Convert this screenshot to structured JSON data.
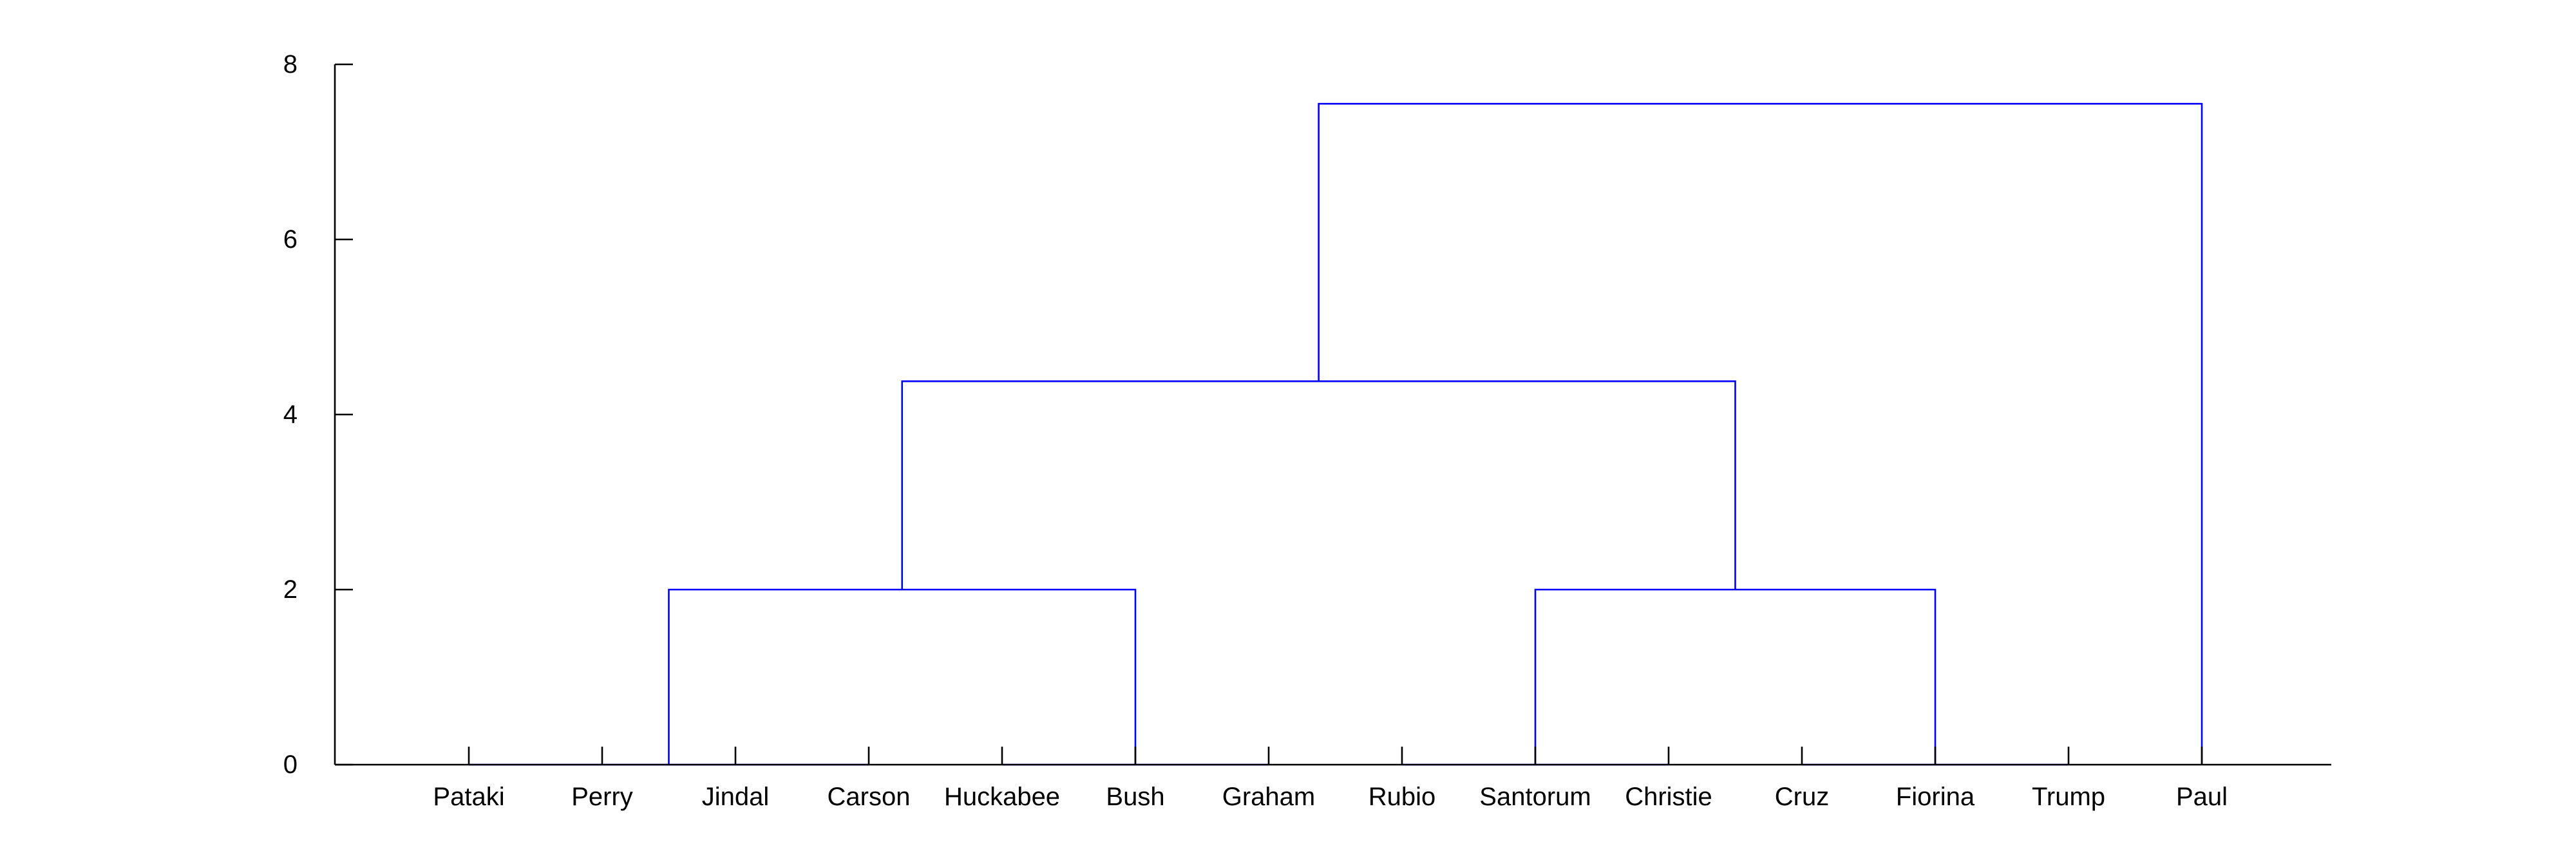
{
  "chart_data": {
    "type": "dendrogram",
    "title": "",
    "xlabel": "",
    "ylabel": "",
    "ylim": [
      0,
      8
    ],
    "y_ticks": [
      0,
      2,
      4,
      6,
      8
    ],
    "grid": false,
    "leaves": [
      "Pataki",
      "Perry",
      "Jindal",
      "Carson",
      "Huckabee",
      "Bush",
      "Graham",
      "Rubio",
      "Santorum",
      "Christie",
      "Cruz",
      "Fiorina",
      "Trump",
      "Paul"
    ],
    "clusters": [
      {
        "members": [
          "Pataki",
          "Perry",
          "Jindal",
          "Carson"
        ],
        "height": 0
      },
      {
        "members": [
          "Huckabee",
          "Bush",
          "Graham"
        ],
        "height": 0
      },
      {
        "members": [
          "Rubio",
          "Santorum",
          "Christie"
        ],
        "height": 0
      },
      {
        "members": [
          "Cruz",
          "Fiorina",
          "Trump"
        ],
        "height": 0
      }
    ],
    "merges": [
      {
        "left": 0,
        "right": 1,
        "height": 2.0
      },
      {
        "left": 2,
        "right": 3,
        "height": 2.0
      },
      {
        "left": 4,
        "right": 5,
        "height": 4.38
      },
      {
        "left": 6,
        "right": "Paul",
        "height": 7.55
      }
    ],
    "colors": {
      "links": "#0000ff",
      "axes": "#000000"
    }
  }
}
